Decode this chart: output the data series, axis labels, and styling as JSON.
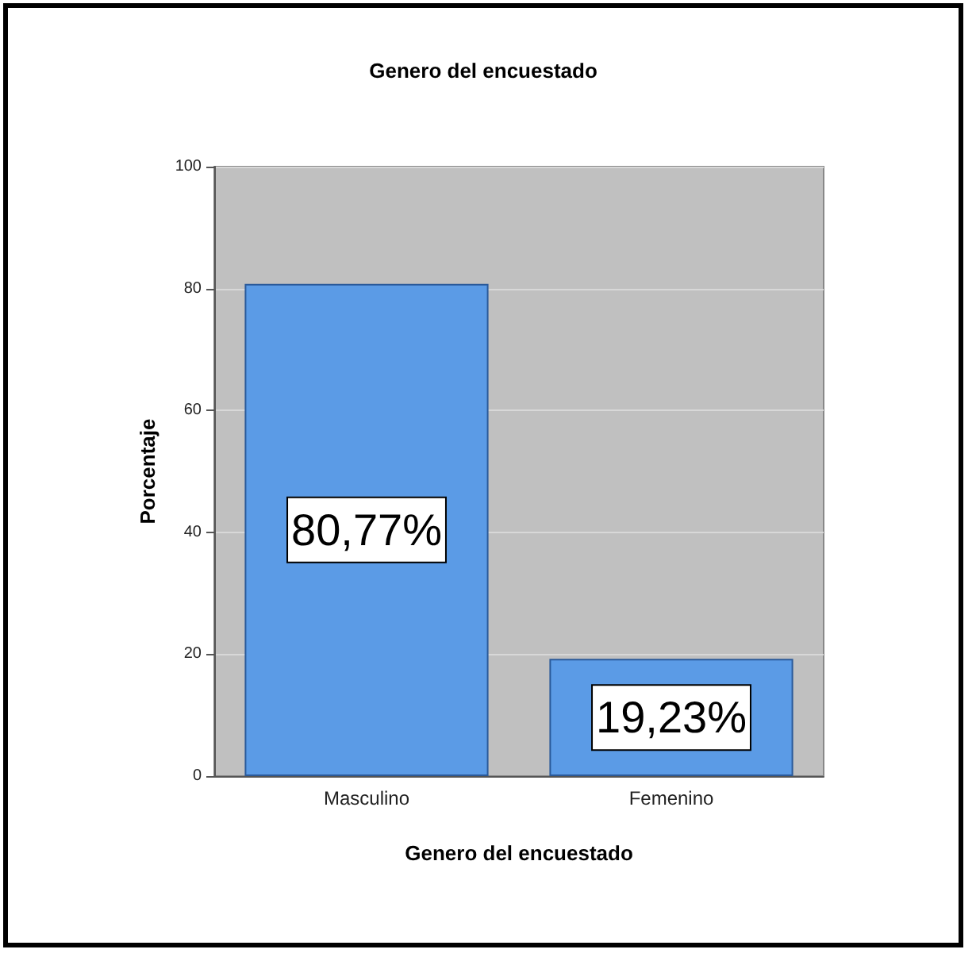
{
  "chart_data": {
    "type": "bar",
    "title": "Genero del encuestado",
    "xlabel": "Genero del encuestado",
    "ylabel": "Porcentaje",
    "categories": [
      "Masculino",
      "Femenino"
    ],
    "values": [
      80.77,
      19.23
    ],
    "value_labels": [
      "80,77%",
      "19,23%"
    ],
    "color": "#5b9be6",
    "ylim": [
      0,
      100
    ],
    "yticks": [
      0,
      20,
      40,
      60,
      80,
      100
    ],
    "grid": "y"
  }
}
